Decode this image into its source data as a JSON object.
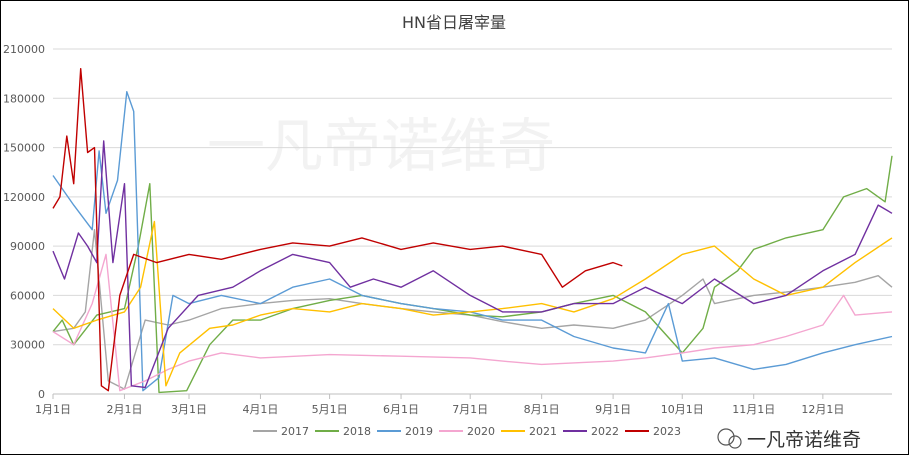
{
  "chart_data": {
    "type": "line",
    "title": "HN省日屠宰量",
    "xlabel": "",
    "ylabel": "",
    "ylim": [
      0,
      210000
    ],
    "yticks": [
      "0",
      "30000",
      "60000",
      "90000",
      "120000",
      "150000",
      "180000",
      "210000"
    ],
    "xticks": [
      {
        "label": "1月1日",
        "date": "01-01"
      },
      {
        "label": "2月1日",
        "date": "02-01"
      },
      {
        "label": "3月1日",
        "date": "03-01"
      },
      {
        "label": "4月1日",
        "date": "04-01"
      },
      {
        "label": "5月1日",
        "date": "05-01"
      },
      {
        "label": "6月1日",
        "date": "06-01"
      },
      {
        "label": "7月1日",
        "date": "07-01"
      },
      {
        "label": "8月1日",
        "date": "08-01"
      },
      {
        "label": "9月1日",
        "date": "09-01"
      },
      {
        "label": "10月1日",
        "date": "10-01"
      },
      {
        "label": "11月1日",
        "date": "11-01"
      },
      {
        "label": "12月1日",
        "date": "12-01"
      }
    ],
    "grid": true,
    "legend": "bottom",
    "series": [
      {
        "name": "2017",
        "color": "#a5a5a5",
        "points": [
          [
            "01-01",
            38000
          ],
          [
            "01-10",
            40000
          ],
          [
            "01-15",
            50000
          ],
          [
            "01-19",
            100000
          ],
          [
            "01-25",
            8000
          ],
          [
            "02-01",
            3000
          ],
          [
            "02-10",
            45000
          ],
          [
            "02-20",
            42000
          ],
          [
            "03-01",
            45000
          ],
          [
            "03-15",
            52000
          ],
          [
            "04-01",
            55000
          ],
          [
            "04-15",
            57000
          ],
          [
            "05-01",
            58000
          ],
          [
            "05-15",
            55000
          ],
          [
            "06-01",
            52000
          ],
          [
            "06-15",
            50000
          ],
          [
            "07-01",
            48000
          ],
          [
            "07-15",
            44000
          ],
          [
            "08-01",
            40000
          ],
          [
            "08-15",
            42000
          ],
          [
            "09-01",
            40000
          ],
          [
            "09-15",
            45000
          ],
          [
            "10-01",
            60000
          ],
          [
            "10-10",
            70000
          ],
          [
            "10-15",
            55000
          ],
          [
            "11-01",
            60000
          ],
          [
            "11-15",
            62000
          ],
          [
            "12-01",
            65000
          ],
          [
            "12-15",
            68000
          ],
          [
            "12-25",
            72000
          ],
          [
            "12-31",
            65000
          ]
        ]
      },
      {
        "name": "2018",
        "color": "#70ad47",
        "points": [
          [
            "01-01",
            38000
          ],
          [
            "01-05",
            45000
          ],
          [
            "01-10",
            30000
          ],
          [
            "01-20",
            48000
          ],
          [
            "02-01",
            52000
          ],
          [
            "02-07",
            90000
          ],
          [
            "02-12",
            128000
          ],
          [
            "02-16",
            1000
          ],
          [
            "02-28",
            2000
          ],
          [
            "03-10",
            30000
          ],
          [
            "03-20",
            45000
          ],
          [
            "04-01",
            45000
          ],
          [
            "04-15",
            52000
          ],
          [
            "05-01",
            57000
          ],
          [
            "05-15",
            60000
          ],
          [
            "06-01",
            55000
          ],
          [
            "06-15",
            52000
          ],
          [
            "07-01",
            48000
          ],
          [
            "07-15",
            47000
          ],
          [
            "08-01",
            50000
          ],
          [
            "08-15",
            55000
          ],
          [
            "09-01",
            60000
          ],
          [
            "09-15",
            50000
          ],
          [
            "10-01",
            25000
          ],
          [
            "10-10",
            40000
          ],
          [
            "10-15",
            65000
          ],
          [
            "10-25",
            75000
          ],
          [
            "11-01",
            88000
          ],
          [
            "11-15",
            95000
          ],
          [
            "12-01",
            100000
          ],
          [
            "12-10",
            120000
          ],
          [
            "12-20",
            125000
          ],
          [
            "12-28",
            117000
          ],
          [
            "12-31",
            145000
          ]
        ]
      },
      {
        "name": "2019",
        "color": "#5b9bd5",
        "points": [
          [
            "01-01",
            133000
          ],
          [
            "01-10",
            115000
          ],
          [
            "01-18",
            100000
          ],
          [
            "01-21",
            148000
          ],
          [
            "01-24",
            110000
          ],
          [
            "01-29",
            130000
          ],
          [
            "02-02",
            184000
          ],
          [
            "02-05",
            172000
          ],
          [
            "02-09",
            2000
          ],
          [
            "02-16",
            10000
          ],
          [
            "02-22",
            60000
          ],
          [
            "03-01",
            55000
          ],
          [
            "03-15",
            60000
          ],
          [
            "04-01",
            55000
          ],
          [
            "04-15",
            65000
          ],
          [
            "05-01",
            70000
          ],
          [
            "05-15",
            60000
          ],
          [
            "06-01",
            55000
          ],
          [
            "06-15",
            52000
          ],
          [
            "07-01",
            50000
          ],
          [
            "07-15",
            45000
          ],
          [
            "08-01",
            45000
          ],
          [
            "08-15",
            35000
          ],
          [
            "09-01",
            28000
          ],
          [
            "09-15",
            25000
          ],
          [
            "09-25",
            55000
          ],
          [
            "10-01",
            20000
          ],
          [
            "10-15",
            22000
          ],
          [
            "11-01",
            15000
          ],
          [
            "11-15",
            18000
          ],
          [
            "12-01",
            25000
          ],
          [
            "12-15",
            30000
          ],
          [
            "12-31",
            35000
          ]
        ]
      },
      {
        "name": "2020",
        "color": "#f4a6d0",
        "points": [
          [
            "01-01",
            38000
          ],
          [
            "01-10",
            30000
          ],
          [
            "01-18",
            55000
          ],
          [
            "01-24",
            85000
          ],
          [
            "01-30",
            2000
          ],
          [
            "02-10",
            8000
          ],
          [
            "02-20",
            15000
          ],
          [
            "03-01",
            20000
          ],
          [
            "03-15",
            25000
          ],
          [
            "04-01",
            22000
          ],
          [
            "05-01",
            24000
          ],
          [
            "06-01",
            23000
          ],
          [
            "07-01",
            22000
          ],
          [
            "07-15",
            20000
          ],
          [
            "08-01",
            18000
          ],
          [
            "09-01",
            20000
          ],
          [
            "09-15",
            22000
          ],
          [
            "10-01",
            25000
          ],
          [
            "10-15",
            28000
          ],
          [
            "11-01",
            30000
          ],
          [
            "11-15",
            35000
          ],
          [
            "12-01",
            42000
          ],
          [
            "12-10",
            60000
          ],
          [
            "12-15",
            48000
          ],
          [
            "12-31",
            50000
          ]
        ]
      },
      {
        "name": "2021",
        "color": "#ffc000",
        "points": [
          [
            "01-01",
            52000
          ],
          [
            "01-10",
            40000
          ],
          [
            "01-20",
            45000
          ],
          [
            "02-01",
            50000
          ],
          [
            "02-08",
            65000
          ],
          [
            "02-14",
            105000
          ],
          [
            "02-19",
            5000
          ],
          [
            "02-25",
            25000
          ],
          [
            "03-10",
            40000
          ],
          [
            "03-20",
            42000
          ],
          [
            "04-01",
            48000
          ],
          [
            "04-15",
            52000
          ],
          [
            "05-01",
            50000
          ],
          [
            "05-15",
            55000
          ],
          [
            "06-01",
            52000
          ],
          [
            "06-15",
            48000
          ],
          [
            "07-01",
            50000
          ],
          [
            "07-15",
            52000
          ],
          [
            "08-01",
            55000
          ],
          [
            "08-15",
            50000
          ],
          [
            "09-01",
            58000
          ],
          [
            "09-15",
            70000
          ],
          [
            "10-01",
            85000
          ],
          [
            "10-15",
            90000
          ],
          [
            "11-01",
            70000
          ],
          [
            "11-15",
            60000
          ],
          [
            "12-01",
            65000
          ],
          [
            "12-15",
            80000
          ],
          [
            "12-31",
            95000
          ]
        ]
      },
      {
        "name": "2022",
        "color": "#7030a0",
        "points": [
          [
            "01-01",
            87000
          ],
          [
            "01-06",
            70000
          ],
          [
            "01-12",
            98000
          ],
          [
            "01-16",
            90000
          ],
          [
            "01-20",
            80000
          ],
          [
            "01-23",
            154000
          ],
          [
            "01-27",
            80000
          ],
          [
            "02-01",
            128000
          ],
          [
            "02-04",
            5000
          ],
          [
            "02-10",
            4000
          ],
          [
            "02-20",
            40000
          ],
          [
            "03-05",
            60000
          ],
          [
            "03-20",
            65000
          ],
          [
            "04-01",
            75000
          ],
          [
            "04-15",
            85000
          ],
          [
            "05-01",
            80000
          ],
          [
            "05-10",
            65000
          ],
          [
            "05-20",
            70000
          ],
          [
            "06-01",
            65000
          ],
          [
            "06-15",
            75000
          ],
          [
            "07-01",
            60000
          ],
          [
            "07-15",
            50000
          ],
          [
            "08-01",
            50000
          ],
          [
            "08-15",
            55000
          ],
          [
            "09-01",
            55000
          ],
          [
            "09-15",
            65000
          ],
          [
            "10-01",
            55000
          ],
          [
            "10-15",
            70000
          ],
          [
            "11-01",
            55000
          ],
          [
            "11-15",
            60000
          ],
          [
            "12-01",
            75000
          ],
          [
            "12-15",
            85000
          ],
          [
            "12-25",
            115000
          ],
          [
            "12-31",
            110000
          ]
        ]
      },
      {
        "name": "2023",
        "color": "#c00000",
        "points": [
          [
            "01-01",
            113000
          ],
          [
            "01-04",
            120000
          ],
          [
            "01-07",
            157000
          ],
          [
            "01-10",
            128000
          ],
          [
            "01-13",
            198000
          ],
          [
            "01-16",
            147000
          ],
          [
            "01-19",
            150000
          ],
          [
            "01-22",
            5000
          ],
          [
            "01-25",
            2000
          ],
          [
            "01-30",
            60000
          ],
          [
            "02-05",
            85000
          ],
          [
            "02-15",
            80000
          ],
          [
            "03-01",
            85000
          ],
          [
            "03-15",
            82000
          ],
          [
            "04-01",
            88000
          ],
          [
            "04-15",
            92000
          ],
          [
            "05-01",
            90000
          ],
          [
            "05-15",
            95000
          ],
          [
            "06-01",
            88000
          ],
          [
            "06-15",
            92000
          ],
          [
            "07-01",
            88000
          ],
          [
            "07-15",
            90000
          ],
          [
            "08-01",
            85000
          ],
          [
            "08-10",
            65000
          ],
          [
            "08-20",
            75000
          ],
          [
            "09-01",
            80000
          ],
          [
            "09-05",
            78000
          ]
        ]
      }
    ],
    "watermark": "一凡帝诺维奇"
  },
  "footer_watermark": "一凡帝诺维奇"
}
